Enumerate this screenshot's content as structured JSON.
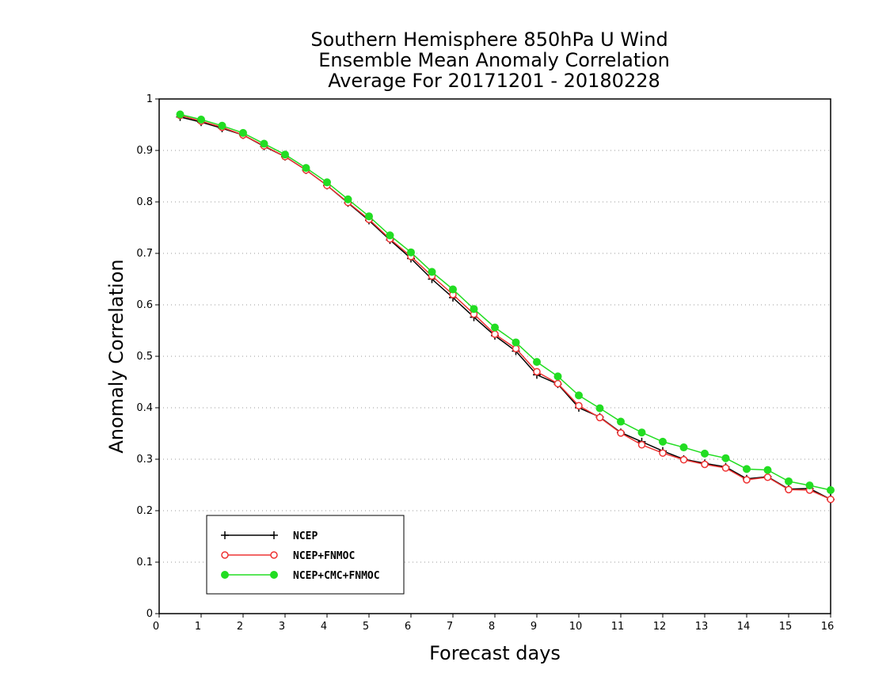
{
  "chart_data": {
    "type": "line",
    "title": [
      "Southern Hemisphere 850hPa U Wind",
      "Ensemble Mean Anomaly Correlation",
      "Average For 20171201 - 20180228"
    ],
    "xlabel": "Forecast days",
    "ylabel": "Anomaly Correlation",
    "xlim": [
      0,
      16
    ],
    "ylim": [
      0,
      1
    ],
    "x_ticks": [
      "0",
      "1",
      "2",
      "3",
      "4",
      "5",
      "6",
      "7",
      "8",
      "9",
      "10",
      "11",
      "12",
      "13",
      "14",
      "15",
      "16"
    ],
    "y_ticks": [
      "0",
      "0.1",
      "0.2",
      "0.3",
      "0.4",
      "0.5",
      "0.6",
      "0.7",
      "0.8",
      "0.9",
      "1"
    ],
    "grid": "horizontal dotted",
    "legend_position": "bottom-left",
    "x": [
      0.5,
      1,
      1.5,
      2,
      2.5,
      3,
      3.5,
      4,
      4.5,
      5,
      5.5,
      6,
      6.5,
      7,
      7.5,
      8,
      8.5,
      9,
      9.5,
      10,
      10.5,
      11,
      11.5,
      12,
      12.5,
      13,
      13.5,
      14,
      14.5,
      15,
      15.5,
      16
    ],
    "series": [
      {
        "name": "NCEP",
        "color": "#000000",
        "marker": "plus",
        "values": [
          0.965,
          0.955,
          0.943,
          0.93,
          0.908,
          0.888,
          0.862,
          0.832,
          0.798,
          0.764,
          0.726,
          0.69,
          0.65,
          0.614,
          0.576,
          0.54,
          0.51,
          0.464,
          0.446,
          0.4,
          0.382,
          0.352,
          0.334,
          0.316,
          0.3,
          0.292,
          0.285,
          0.262,
          0.266,
          0.242,
          0.243,
          0.222
        ]
      },
      {
        "name": "NCEP+FNMOC",
        "color": "#ee3333",
        "marker": "open-circle",
        "values": [
          0.968,
          0.957,
          0.945,
          0.93,
          0.909,
          0.888,
          0.862,
          0.832,
          0.799,
          0.766,
          0.728,
          0.694,
          0.656,
          0.62,
          0.582,
          0.543,
          0.515,
          0.47,
          0.447,
          0.404,
          0.381,
          0.351,
          0.328,
          0.312,
          0.299,
          0.29,
          0.283,
          0.26,
          0.265,
          0.241,
          0.24,
          0.222
        ]
      },
      {
        "name": "NCEP+CMC+FNMOC",
        "color": "#22dd22",
        "marker": "filled-circle",
        "values": [
          0.97,
          0.96,
          0.948,
          0.934,
          0.913,
          0.892,
          0.866,
          0.838,
          0.805,
          0.772,
          0.735,
          0.702,
          0.664,
          0.63,
          0.592,
          0.556,
          0.527,
          0.489,
          0.461,
          0.424,
          0.399,
          0.373,
          0.352,
          0.334,
          0.323,
          0.311,
          0.302,
          0.281,
          0.279,
          0.257,
          0.249,
          0.24
        ]
      }
    ]
  }
}
